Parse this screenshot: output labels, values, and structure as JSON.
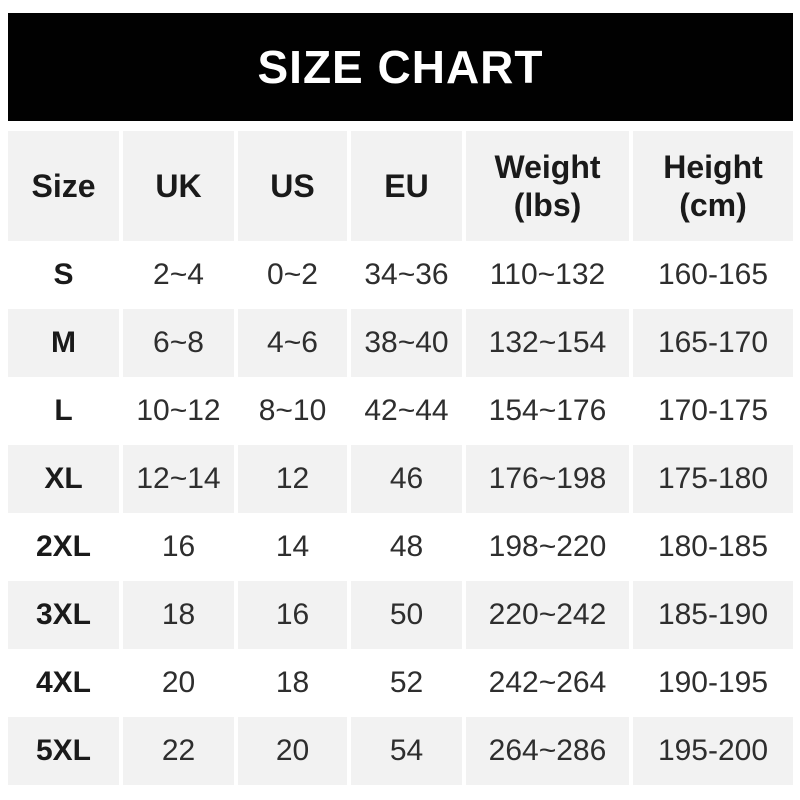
{
  "chart_data": {
    "type": "table",
    "title": "SIZE CHART",
    "columns": [
      {
        "line1": "Size",
        "line2": ""
      },
      {
        "line1": "UK",
        "line2": ""
      },
      {
        "line1": "US",
        "line2": ""
      },
      {
        "line1": "EU",
        "line2": ""
      },
      {
        "line1": "Weight",
        "line2": "(lbs)"
      },
      {
        "line1": "Height",
        "line2": "(cm)"
      }
    ],
    "rows": [
      {
        "size": "S",
        "uk": "2~4",
        "us": "0~2",
        "eu": "34~36",
        "weight": "110~132",
        "height": "160-165"
      },
      {
        "size": "M",
        "uk": "6~8",
        "us": "4~6",
        "eu": "38~40",
        "weight": "132~154",
        "height": "165-170"
      },
      {
        "size": "L",
        "uk": "10~12",
        "us": "8~10",
        "eu": "42~44",
        "weight": "154~176",
        "height": "170-175"
      },
      {
        "size": "XL",
        "uk": "12~14",
        "us": "12",
        "eu": "46",
        "weight": "176~198",
        "height": "175-180"
      },
      {
        "size": "2XL",
        "uk": "16",
        "us": "14",
        "eu": "48",
        "weight": "198~220",
        "height": "180-185"
      },
      {
        "size": "3XL",
        "uk": "18",
        "us": "16",
        "eu": "50",
        "weight": "220~242",
        "height": "185-190"
      },
      {
        "size": "4XL",
        "uk": "20",
        "us": "18",
        "eu": "52",
        "weight": "242~264",
        "height": "190-195"
      },
      {
        "size": "5XL",
        "uk": "22",
        "us": "20",
        "eu": "54",
        "weight": "264~286",
        "height": "195-200"
      }
    ],
    "layout": {
      "legend": "none",
      "grid": "off",
      "row_striping": "header and even data rows #f2f2f2, odd data rows #ffffff"
    }
  },
  "colors": {
    "banner_bg": "#010101",
    "banner_text": "#ffffff",
    "stripe_bg": "#f2f2f2",
    "plain_bg": "#ffffff",
    "label_text": "#1a1a1a",
    "value_text": "#2e2e2e"
  }
}
